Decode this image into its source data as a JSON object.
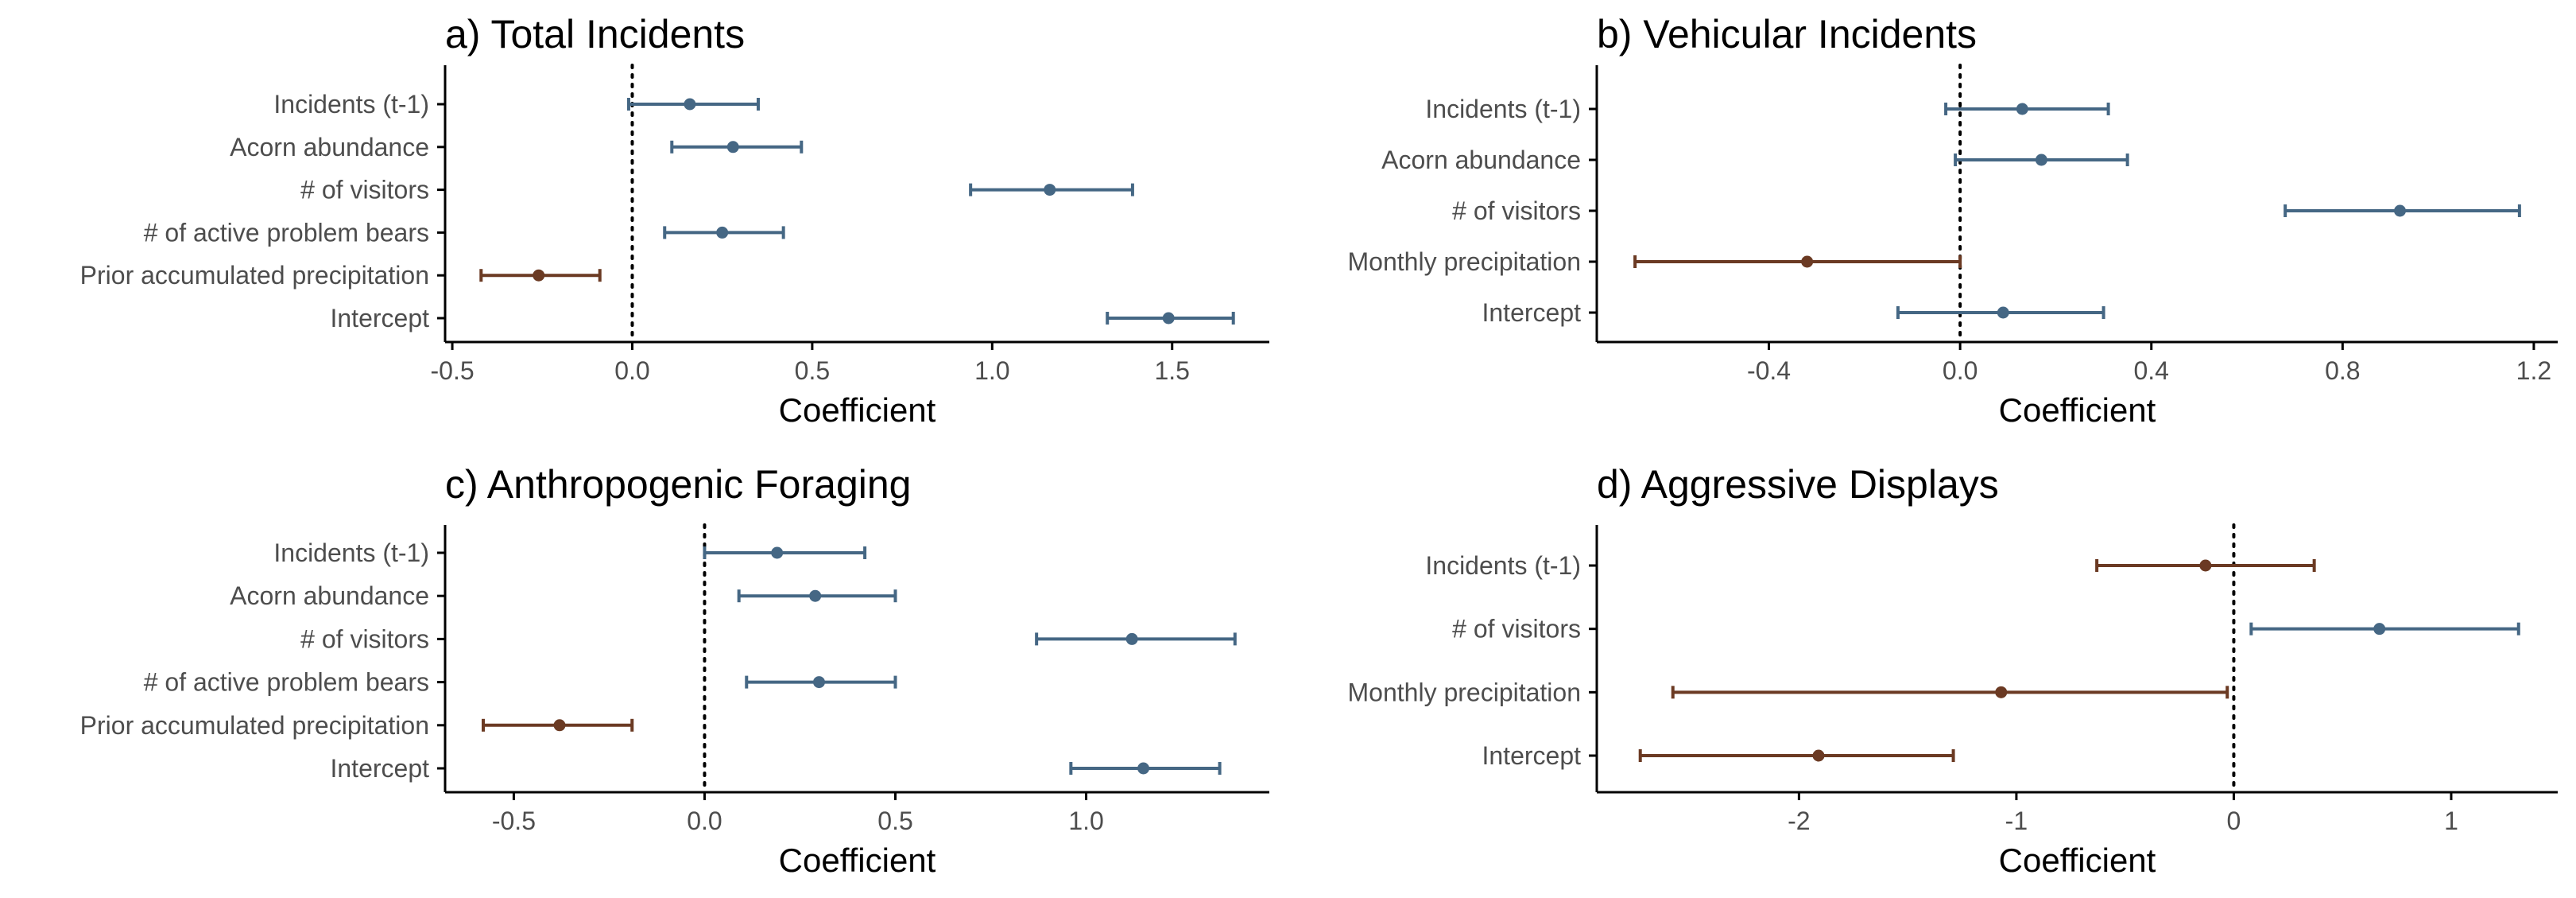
{
  "colors": {
    "positive": "#456784",
    "negative": "#6b3a23",
    "axis": "#000000",
    "text": "#4d4d4d"
  },
  "chart_data": [
    {
      "type": "scatter",
      "title": "a) Total Incidents",
      "xlabel": "Coefficient",
      "ylabel": "",
      "xlim": [
        -0.52,
        1.77
      ],
      "xticks": [
        -0.5,
        0.0,
        0.5,
        1.0,
        1.5
      ],
      "xtick_labels": [
        "-0.5",
        "0.0",
        "0.5",
        "1.0",
        "1.5"
      ],
      "zero_line": "dotted",
      "grid": false,
      "legend": "none",
      "categories": [
        "Incidents (t-1)",
        "Acorn abundance",
        "# of visitors",
        "# of active problem bears",
        "Prior accumulated precipitation",
        "Intercept"
      ],
      "estimate": [
        0.16,
        0.28,
        1.16,
        0.25,
        -0.26,
        1.49
      ],
      "lower": [
        -0.01,
        0.11,
        0.94,
        0.09,
        -0.42,
        1.32
      ],
      "upper": [
        0.35,
        0.47,
        1.39,
        0.42,
        -0.09,
        1.67
      ]
    },
    {
      "type": "scatter",
      "title": "b) Vehicular Incidents",
      "xlabel": "Coefficient",
      "ylabel": "",
      "xlim": [
        -0.76,
        1.25
      ],
      "xticks": [
        -0.4,
        0.0,
        0.4,
        0.8,
        1.2
      ],
      "xtick_labels": [
        "-0.4",
        "0.0",
        "0.4",
        "0.8",
        "1.2"
      ],
      "zero_line": "dotted",
      "grid": false,
      "legend": "none",
      "categories": [
        "Incidents (t-1)",
        "Acorn abundance",
        "# of visitors",
        "Monthly precipitation",
        "Intercept"
      ],
      "estimate": [
        0.13,
        0.17,
        0.92,
        -0.32,
        0.09
      ],
      "lower": [
        -0.03,
        -0.01,
        0.68,
        -0.68,
        -0.13
      ],
      "upper": [
        0.31,
        0.35,
        1.17,
        0.0,
        0.3
      ]
    },
    {
      "type": "scatter",
      "title": "c) Anthropogenic Foraging",
      "xlabel": "Coefficient",
      "ylabel": "",
      "xlim": [
        -0.68,
        1.48
      ],
      "xticks": [
        -0.5,
        0.0,
        0.5,
        1.0
      ],
      "xtick_labels": [
        "-0.5",
        "0.0",
        "0.5",
        "1.0"
      ],
      "zero_line": "dotted",
      "grid": false,
      "legend": "none",
      "categories": [
        "Incidents (t-1)",
        "Acorn abundance",
        "# of visitors",
        "# of active problem bears",
        "Prior accumulated precipitation",
        "Intercept"
      ],
      "estimate": [
        0.19,
        0.29,
        1.12,
        0.3,
        -0.38,
        1.15
      ],
      "lower": [
        0.0,
        0.09,
        0.87,
        0.11,
        -0.58,
        0.96
      ],
      "upper": [
        0.42,
        0.5,
        1.39,
        0.5,
        -0.19,
        1.35
      ]
    },
    {
      "type": "scatter",
      "title": "d) Aggressive Displays",
      "xlabel": "Coefficient",
      "ylabel": "",
      "xlim": [
        -2.93,
        1.49
      ],
      "xticks": [
        -2,
        -1,
        0,
        1
      ],
      "xtick_labels": [
        "-2",
        "-1",
        "0",
        "1"
      ],
      "zero_line": "dotted",
      "grid": false,
      "legend": "none",
      "categories": [
        "Incidents (t-1)",
        "# of visitors",
        "Monthly precipitation",
        "Intercept"
      ],
      "estimate": [
        -0.13,
        0.67,
        -1.07,
        -1.91
      ],
      "lower": [
        -0.63,
        0.08,
        -2.58,
        -2.73
      ],
      "upper": [
        0.37,
        1.31,
        -0.03,
        -1.29
      ]
    }
  ]
}
